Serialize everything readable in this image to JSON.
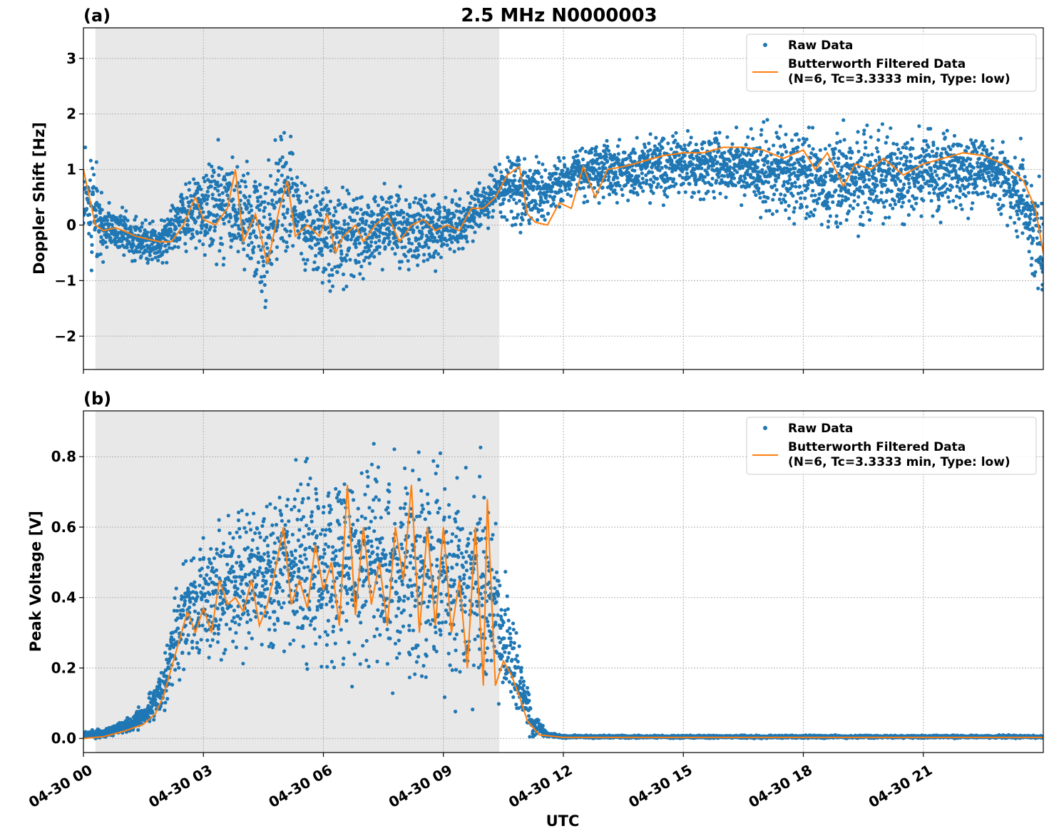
{
  "figure": {
    "title": "2.5 MHz N0000003",
    "xlabel": "UTC",
    "colors": {
      "raw": "#1f77b4",
      "filtered": "#ff7f0e",
      "shade": "#e8e8e8",
      "grid": "#b0b0b0"
    }
  },
  "chart_data": [
    {
      "type": "scatter",
      "panel_label": "(a)",
      "ylabel": "Doppler Shift [Hz]",
      "xlim_hours": [
        0,
        24
      ],
      "x_unit": "hours UTC from 04-30 00:00",
      "ylim": [
        -2.6,
        3.55
      ],
      "yticks": [
        -2,
        -1,
        0,
        1,
        2,
        3
      ],
      "ytick_labels": [
        "−2",
        "−1",
        "0",
        "1",
        "2",
        "3"
      ],
      "shaded_region_hours": [
        0.3,
        10.4
      ],
      "grid": true,
      "legend": {
        "position": "top-right",
        "entries": [
          "Raw Data",
          "Butterworth Filtered Data",
          "(N=6, Tc=3.3333 min, Type: low)"
        ]
      },
      "series": [
        {
          "name": "Raw Data",
          "style": "points",
          "note_envelope": [
            [
              0.0,
              -0.5,
              1.8
            ],
            [
              0.3,
              -1.0,
              1.4
            ],
            [
              0.5,
              -0.7,
              0.5
            ],
            [
              1.0,
              -0.6,
              0.35
            ],
            [
              1.5,
              -0.9,
              0.2
            ],
            [
              2.0,
              -0.8,
              0.2
            ],
            [
              2.5,
              -0.5,
              0.8
            ],
            [
              3.0,
              -0.6,
              1.2
            ],
            [
              3.5,
              -0.9,
              1.7
            ],
            [
              4.0,
              -1.0,
              1.3
            ],
            [
              4.5,
              -1.6,
              1.0
            ],
            [
              5.0,
              -0.9,
              2.3
            ],
            [
              5.5,
              -0.8,
              1.0
            ],
            [
              6.0,
              -1.4,
              0.9
            ],
            [
              6.5,
              -1.3,
              0.8
            ],
            [
              7.0,
              -1.0,
              0.7
            ],
            [
              7.5,
              -0.8,
              0.8
            ],
            [
              8.0,
              -0.9,
              0.8
            ],
            [
              8.5,
              -1.0,
              0.8
            ],
            [
              9.0,
              -0.8,
              0.6
            ],
            [
              9.5,
              -0.5,
              0.7
            ],
            [
              10.0,
              -0.1,
              0.9
            ],
            [
              10.5,
              0.0,
              1.3
            ],
            [
              11.0,
              -0.2,
              1.5
            ],
            [
              11.5,
              0.0,
              1.1
            ],
            [
              12.0,
              0.3,
              1.4
            ],
            [
              13.0,
              0.4,
              1.6
            ],
            [
              14.0,
              0.3,
              1.7
            ],
            [
              15.0,
              0.4,
              1.8
            ],
            [
              16.0,
              0.3,
              1.8
            ],
            [
              17.0,
              0.0,
              1.9
            ],
            [
              18.0,
              -0.2,
              1.9
            ],
            [
              19.0,
              -0.3,
              1.9
            ],
            [
              20.0,
              -0.2,
              1.9
            ],
            [
              21.0,
              0.0,
              1.85
            ],
            [
              22.0,
              0.1,
              1.8
            ],
            [
              23.0,
              0.0,
              1.7
            ],
            [
              23.5,
              -0.6,
              1.6
            ],
            [
              24.0,
              -1.8,
              0.9
            ]
          ]
        },
        {
          "name": "Butterworth Filtered Data",
          "style": "line",
          "points": [
            [
              0.0,
              1.0
            ],
            [
              0.15,
              0.5
            ],
            [
              0.3,
              0.0
            ],
            [
              0.5,
              -0.1
            ],
            [
              0.8,
              -0.05
            ],
            [
              1.0,
              -0.1
            ],
            [
              1.3,
              -0.2
            ],
            [
              1.6,
              -0.25
            ],
            [
              1.9,
              -0.3
            ],
            [
              2.2,
              -0.3
            ],
            [
              2.5,
              0.0
            ],
            [
              2.8,
              0.5
            ],
            [
              3.0,
              0.1
            ],
            [
              3.3,
              0.0
            ],
            [
              3.6,
              0.3
            ],
            [
              3.8,
              1.0
            ],
            [
              4.0,
              -0.3
            ],
            [
              4.3,
              0.2
            ],
            [
              4.6,
              -0.7
            ],
            [
              4.9,
              0.3
            ],
            [
              5.1,
              0.8
            ],
            [
              5.3,
              -0.2
            ],
            [
              5.6,
              0.0
            ],
            [
              5.9,
              -0.2
            ],
            [
              6.1,
              0.2
            ],
            [
              6.3,
              -0.5
            ],
            [
              6.5,
              -0.2
            ],
            [
              6.8,
              0.0
            ],
            [
              7.0,
              -0.3
            ],
            [
              7.3,
              0.0
            ],
            [
              7.6,
              0.2
            ],
            [
              7.9,
              -0.3
            ],
            [
              8.2,
              0.0
            ],
            [
              8.5,
              0.1
            ],
            [
              8.8,
              -0.1
            ],
            [
              9.1,
              0.0
            ],
            [
              9.4,
              -0.1
            ],
            [
              9.7,
              0.3
            ],
            [
              10.0,
              0.3
            ],
            [
              10.3,
              0.5
            ],
            [
              10.6,
              0.9
            ],
            [
              10.9,
              1.05
            ],
            [
              11.1,
              0.2
            ],
            [
              11.3,
              0.05
            ],
            [
              11.6,
              0.0
            ],
            [
              11.9,
              0.4
            ],
            [
              12.2,
              0.3
            ],
            [
              12.5,
              1.05
            ],
            [
              12.8,
              0.5
            ],
            [
              13.1,
              1.0
            ],
            [
              13.5,
              1.05
            ],
            [
              14.0,
              1.15
            ],
            [
              14.5,
              1.25
            ],
            [
              15.0,
              1.3
            ],
            [
              15.5,
              1.3
            ],
            [
              16.0,
              1.4
            ],
            [
              16.5,
              1.4
            ],
            [
              17.0,
              1.35
            ],
            [
              17.5,
              1.2
            ],
            [
              18.0,
              1.35
            ],
            [
              18.3,
              1.0
            ],
            [
              18.6,
              1.3
            ],
            [
              19.0,
              0.7
            ],
            [
              19.3,
              1.1
            ],
            [
              19.7,
              1.0
            ],
            [
              20.0,
              1.2
            ],
            [
              20.5,
              0.9
            ],
            [
              21.0,
              1.1
            ],
            [
              21.5,
              1.2
            ],
            [
              22.0,
              1.3
            ],
            [
              22.5,
              1.25
            ],
            [
              23.0,
              1.1
            ],
            [
              23.5,
              0.8
            ],
            [
              23.8,
              0.3
            ],
            [
              24.0,
              -0.5
            ]
          ]
        }
      ]
    },
    {
      "type": "scatter",
      "panel_label": "(b)",
      "ylabel": "Peak Voltage [V]",
      "xlim_hours": [
        0,
        24
      ],
      "x_unit": "hours UTC from 04-30 00:00",
      "ylim": [
        -0.04,
        0.93
      ],
      "yticks": [
        0.0,
        0.2,
        0.4,
        0.6,
        0.8
      ],
      "ytick_labels": [
        "0.0",
        "0.2",
        "0.4",
        "0.6",
        "0.8"
      ],
      "shaded_region_hours": [
        0.3,
        10.4
      ],
      "grid": true,
      "xticks_hours": [
        0,
        3,
        6,
        9,
        12,
        15,
        18,
        21
      ],
      "xtick_labels": [
        "04-30 00",
        "04-30 03",
        "04-30 06",
        "04-30 09",
        "04-30 12",
        "04-30 15",
        "04-30 18",
        "04-30 21"
      ],
      "legend": {
        "position": "top-right",
        "entries": [
          "Raw Data",
          "Butterworth Filtered Data",
          "(N=6, Tc=3.3333 min, Type: low)"
        ]
      },
      "series": [
        {
          "name": "Raw Data",
          "style": "points",
          "note_envelope": [
            [
              0.0,
              0.0,
              0.02
            ],
            [
              0.5,
              0.0,
              0.03
            ],
            [
              1.0,
              0.01,
              0.06
            ],
            [
              1.5,
              0.02,
              0.1
            ],
            [
              2.0,
              0.05,
              0.25
            ],
            [
              2.3,
              0.1,
              0.45
            ],
            [
              2.6,
              0.15,
              0.55
            ],
            [
              3.0,
              0.18,
              0.6
            ],
            [
              3.5,
              0.18,
              0.68
            ],
            [
              4.0,
              0.17,
              0.7
            ],
            [
              4.5,
              0.18,
              0.72
            ],
            [
              5.0,
              0.18,
              0.78
            ],
            [
              5.5,
              0.15,
              0.8
            ],
            [
              6.0,
              0.15,
              0.82
            ],
            [
              6.5,
              0.13,
              0.87
            ],
            [
              7.0,
              0.13,
              0.87
            ],
            [
              7.5,
              0.1,
              0.85
            ],
            [
              8.0,
              0.1,
              0.88
            ],
            [
              8.5,
              0.1,
              0.86
            ],
            [
              9.0,
              0.08,
              0.85
            ],
            [
              9.5,
              0.07,
              0.8
            ],
            [
              10.0,
              0.05,
              0.87
            ],
            [
              10.4,
              0.05,
              0.6
            ],
            [
              10.8,
              0.02,
              0.38
            ],
            [
              11.2,
              0.0,
              0.1
            ],
            [
              11.6,
              0.0,
              0.02
            ],
            [
              12.0,
              0.0,
              0.01
            ],
            [
              24.0,
              0.0,
              0.01
            ]
          ]
        },
        {
          "name": "Butterworth Filtered Data",
          "style": "line",
          "points": [
            [
              0.0,
              0.0
            ],
            [
              0.5,
              0.005
            ],
            [
              1.0,
              0.02
            ],
            [
              1.5,
              0.04
            ],
            [
              1.8,
              0.07
            ],
            [
              2.0,
              0.12
            ],
            [
              2.2,
              0.2
            ],
            [
              2.4,
              0.28
            ],
            [
              2.6,
              0.36
            ],
            [
              2.8,
              0.3
            ],
            [
              3.0,
              0.37
            ],
            [
              3.2,
              0.3
            ],
            [
              3.4,
              0.45
            ],
            [
              3.6,
              0.38
            ],
            [
              3.8,
              0.4
            ],
            [
              4.0,
              0.36
            ],
            [
              4.2,
              0.45
            ],
            [
              4.4,
              0.32
            ],
            [
              4.6,
              0.38
            ],
            [
              4.8,
              0.48
            ],
            [
              5.0,
              0.6
            ],
            [
              5.2,
              0.38
            ],
            [
              5.4,
              0.45
            ],
            [
              5.6,
              0.37
            ],
            [
              5.8,
              0.55
            ],
            [
              6.0,
              0.42
            ],
            [
              6.2,
              0.5
            ],
            [
              6.4,
              0.32
            ],
            [
              6.6,
              0.72
            ],
            [
              6.8,
              0.35
            ],
            [
              7.0,
              0.6
            ],
            [
              7.2,
              0.38
            ],
            [
              7.4,
              0.5
            ],
            [
              7.6,
              0.32
            ],
            [
              7.8,
              0.6
            ],
            [
              8.0,
              0.45
            ],
            [
              8.2,
              0.72
            ],
            [
              8.4,
              0.3
            ],
            [
              8.6,
              0.6
            ],
            [
              8.8,
              0.32
            ],
            [
              9.0,
              0.6
            ],
            [
              9.2,
              0.3
            ],
            [
              9.4,
              0.45
            ],
            [
              9.6,
              0.2
            ],
            [
              9.8,
              0.6
            ],
            [
              10.0,
              0.15
            ],
            [
              10.1,
              0.68
            ],
            [
              10.3,
              0.15
            ],
            [
              10.5,
              0.22
            ],
            [
              10.7,
              0.18
            ],
            [
              10.9,
              0.12
            ],
            [
              11.1,
              0.05
            ],
            [
              11.4,
              0.01
            ],
            [
              12.0,
              0.003
            ],
            [
              24.0,
              0.003
            ]
          ]
        }
      ]
    }
  ]
}
